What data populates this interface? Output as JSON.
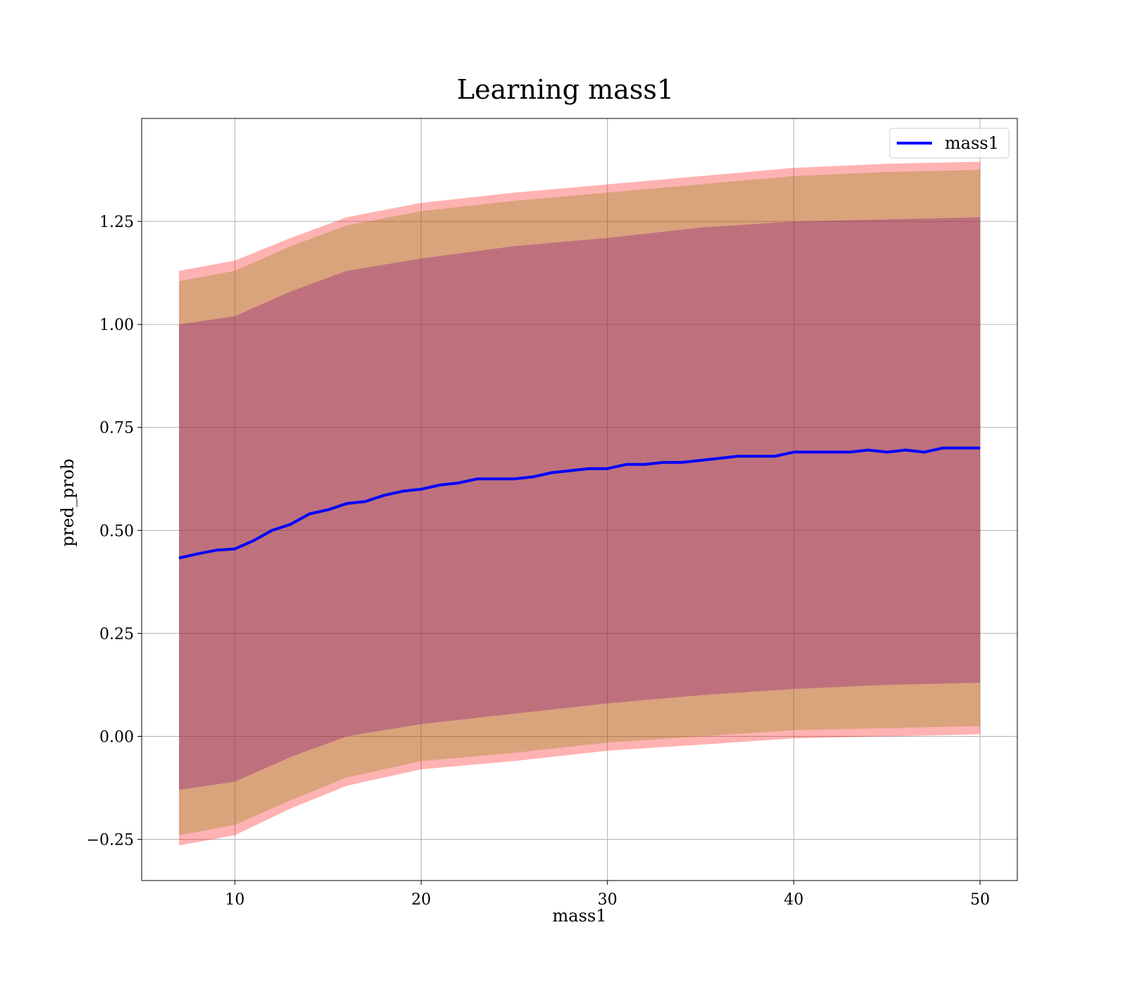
{
  "chart_data": {
    "type": "line",
    "title": "Learning mass1",
    "xlabel": "mass1",
    "ylabel": "pred_prob",
    "xlim": [
      5,
      52
    ],
    "ylim": [
      -0.35,
      1.5
    ],
    "xticks": [
      10,
      20,
      30,
      40,
      50
    ],
    "xtick_labels": [
      "10",
      "20",
      "30",
      "40",
      "50"
    ],
    "yticks": [
      -0.25,
      0,
      0.25,
      0.5,
      0.75,
      1.0,
      1.25
    ],
    "ytick_labels": [
      "−0.25",
      "0.00",
      "0.25",
      "0.50",
      "0.75",
      "1.00",
      "1.25"
    ],
    "grid": true,
    "legend": {
      "position": "top-right",
      "entries": [
        "mass1"
      ]
    },
    "series": [
      {
        "name": "mass1",
        "color": "#0000ff",
        "x": [
          7,
          8,
          9,
          10,
          11,
          12,
          13,
          14,
          15,
          16,
          17,
          18,
          19,
          20,
          21,
          22,
          23,
          24,
          25,
          26,
          27,
          28,
          29,
          30,
          31,
          32,
          33,
          34,
          35,
          36,
          37,
          38,
          39,
          40,
          41,
          42,
          43,
          44,
          45,
          46,
          47,
          48,
          49,
          50
        ],
        "y": [
          0.433,
          0.443,
          0.452,
          0.455,
          0.475,
          0.5,
          0.515,
          0.54,
          0.55,
          0.565,
          0.57,
          0.585,
          0.595,
          0.6,
          0.61,
          0.615,
          0.625,
          0.625,
          0.625,
          0.63,
          0.64,
          0.645,
          0.65,
          0.65,
          0.66,
          0.66,
          0.665,
          0.665,
          0.67,
          0.675,
          0.68,
          0.68,
          0.68,
          0.69,
          0.69,
          0.69,
          0.69,
          0.695,
          0.69,
          0.695,
          0.69,
          0.7,
          0.7,
          0.7
        ]
      }
    ],
    "bands": [
      {
        "color": "#ff0000",
        "opacity": 0.3,
        "x": [
          7,
          10,
          13,
          16,
          20,
          25,
          30,
          35,
          40,
          45,
          50
        ],
        "upper": [
          1.13,
          1.155,
          1.21,
          1.26,
          1.295,
          1.32,
          1.34,
          1.36,
          1.38,
          1.39,
          1.395
        ],
        "lower": [
          -0.265,
          -0.24,
          -0.175,
          -0.12,
          -0.08,
          -0.06,
          -0.035,
          -0.02,
          -0.005,
          0.0,
          0.005
        ]
      },
      {
        "color": "#808000",
        "opacity": 0.3,
        "x": [
          7,
          10,
          13,
          16,
          20,
          25,
          30,
          35,
          40,
          45,
          50
        ],
        "upper": [
          1.105,
          1.13,
          1.19,
          1.24,
          1.275,
          1.3,
          1.32,
          1.34,
          1.36,
          1.37,
          1.375
        ],
        "lower": [
          -0.24,
          -0.215,
          -0.155,
          -0.1,
          -0.06,
          -0.04,
          -0.015,
          0.0,
          0.015,
          0.02,
          0.025
        ]
      },
      {
        "color": "#800080",
        "opacity": 0.3,
        "x": [
          7,
          10,
          13,
          16,
          20,
          25,
          30,
          35,
          40,
          45,
          50
        ],
        "upper": [
          1.0,
          1.02,
          1.08,
          1.13,
          1.16,
          1.19,
          1.21,
          1.235,
          1.25,
          1.255,
          1.26
        ],
        "lower": [
          -0.13,
          -0.11,
          -0.05,
          0.0,
          0.03,
          0.055,
          0.08,
          0.1,
          0.115,
          0.125,
          0.13
        ]
      }
    ]
  }
}
